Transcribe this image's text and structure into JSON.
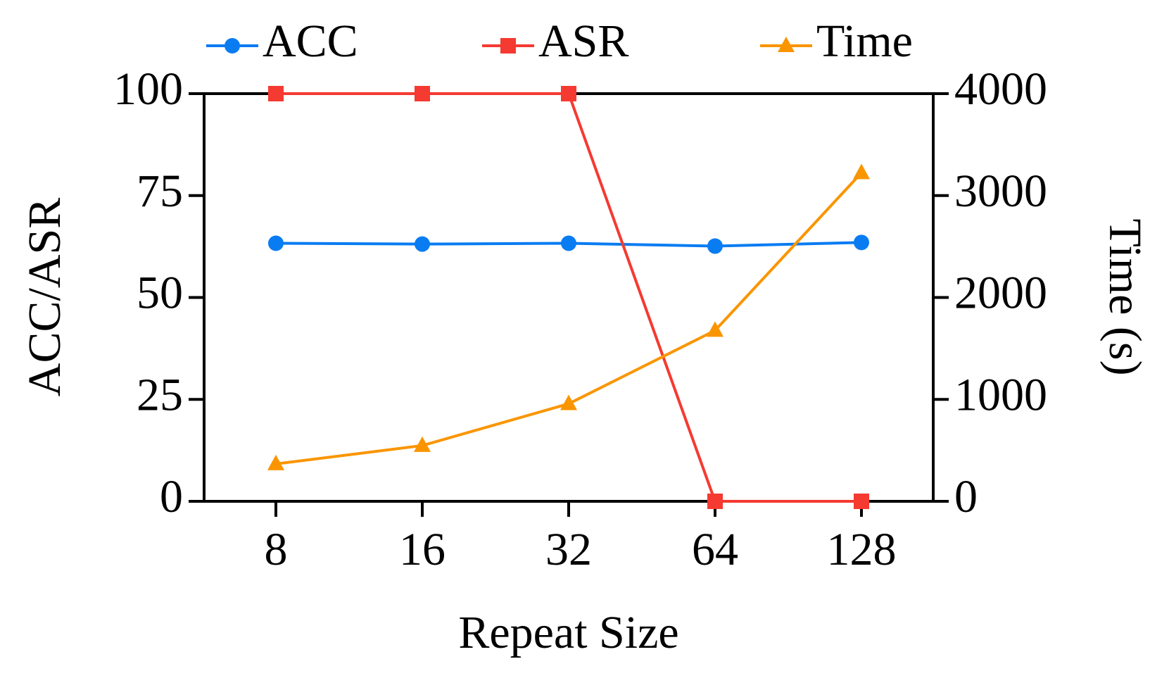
{
  "chart_data": {
    "type": "line",
    "x_label": "Repeat Size",
    "y_label": "ACC/ASR",
    "y2_label": "Time (s)",
    "categories": [
      "8",
      "16",
      "32",
      "64",
      "128"
    ],
    "series": [
      {
        "name": "ACC",
        "color": "#0a7cf2",
        "marker": "circle",
        "values": [
          63.3,
          63.1,
          63.3,
          62.6,
          63.5
        ]
      },
      {
        "name": "ASR",
        "color": "#f53a31",
        "marker": "square",
        "values": [
          100,
          100,
          100,
          0,
          0
        ]
      },
      {
        "name": "Time",
        "color": "#fa9500",
        "marker": "triangle",
        "axis": "y2",
        "values": [
          367,
          547,
          957,
          1676,
          3223
        ]
      }
    ],
    "ylim": [
      0,
      100
    ],
    "yticks": [
      0,
      25,
      50,
      75,
      100
    ],
    "y2lim": [
      0,
      4000
    ],
    "y2ticks": [
      0,
      1000,
      2000,
      3000,
      4000
    ],
    "legend": "top"
  }
}
